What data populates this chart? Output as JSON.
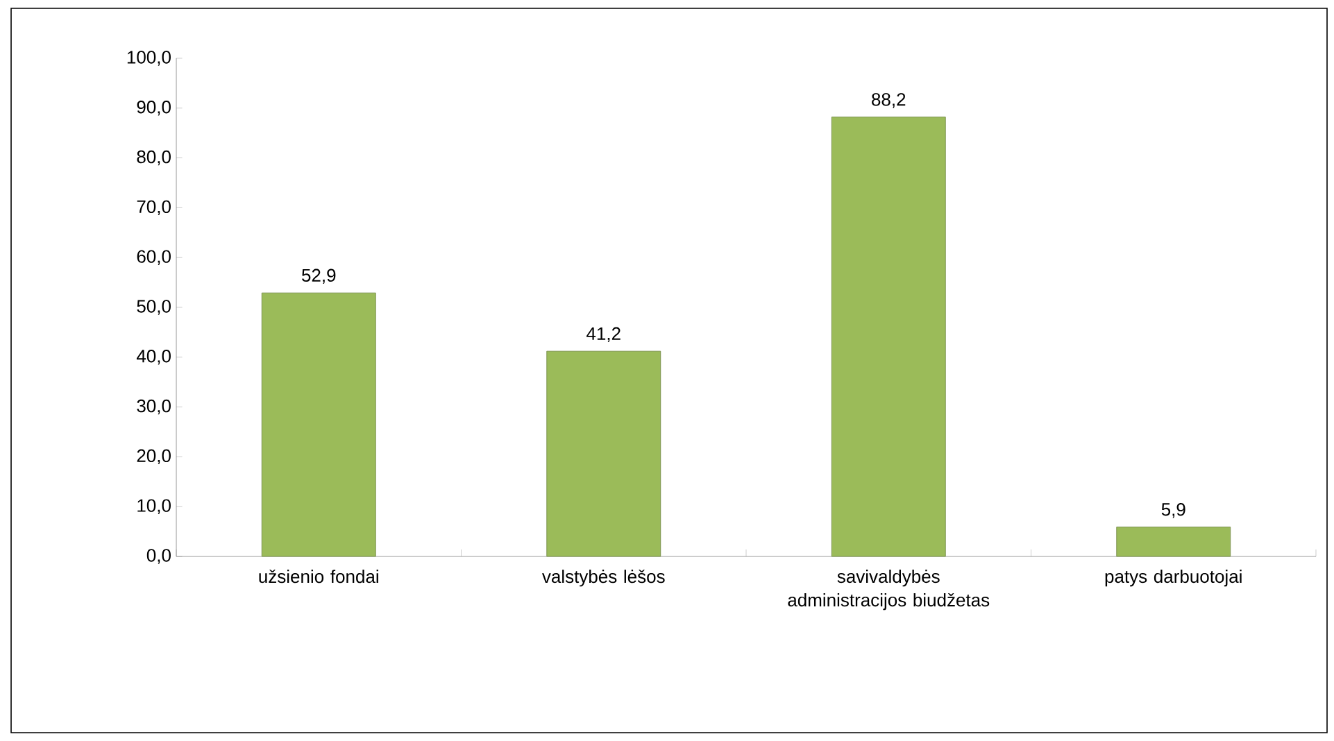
{
  "chart_data": {
    "type": "bar",
    "categories": [
      "užsienio fondai",
      "valstybės lėšos",
      "savivaldybės administracijos biudžetas",
      "patys darbuotojai"
    ],
    "values": [
      52.9,
      41.2,
      88.2,
      5.9
    ],
    "value_labels": [
      "52,9",
      "41,2",
      "88,2",
      "5,9"
    ],
    "color": "#9bbb59",
    "ylim": [
      0,
      100
    ],
    "yticks": [
      {
        "value": 0,
        "label": "0,0"
      },
      {
        "value": 10,
        "label": "10,0"
      },
      {
        "value": 20,
        "label": "20,0"
      },
      {
        "value": 30,
        "label": "30,0"
      },
      {
        "value": 40,
        "label": "40,0"
      },
      {
        "value": 50,
        "label": "50,0"
      },
      {
        "value": 60,
        "label": "60,0"
      },
      {
        "value": 70,
        "label": "70,0"
      },
      {
        "value": 80,
        "label": "80,0"
      },
      {
        "value": 90,
        "label": "90,0"
      },
      {
        "value": 100,
        "label": "100,0"
      }
    ]
  }
}
